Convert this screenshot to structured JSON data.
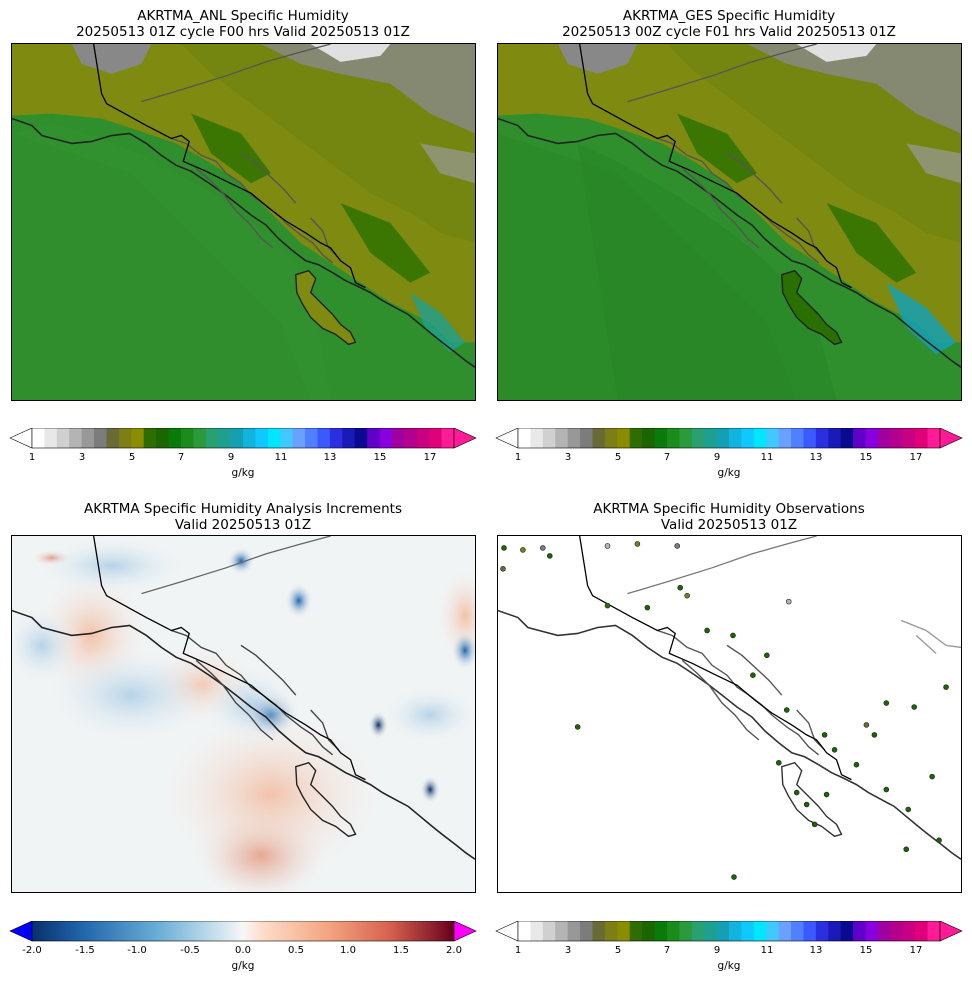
{
  "panels": {
    "anl": {
      "title_line1": "AKRTMA_ANL Specific Humidity",
      "title_line2": "20250513 01Z cycle F00 hrs Valid 20250513 01Z"
    },
    "ges": {
      "title_line1": "AKRTMA_GES Specific Humidity",
      "title_line2": "20250513 00Z cycle F01 hrs Valid 20250513 01Z"
    },
    "inc": {
      "title_line1": "AKRTMA Specific Humidity Analysis Increments",
      "title_line2": "Valid 20250513 01Z"
    },
    "obs": {
      "title_line1": "AKRTMA Specific Humidity Observations",
      "title_line2": "Valid 20250513 01Z"
    }
  },
  "colorbars": {
    "humidity": {
      "ticks": [
        "1",
        "3",
        "5",
        "7",
        "9",
        "11",
        "13",
        "15",
        "17"
      ],
      "unit": "g/kg",
      "colors": [
        "#ffffff",
        "#e8e8e8",
        "#d0d0d0",
        "#b4b4b4",
        "#989898",
        "#7c7c7c",
        "#6a6a36",
        "#7e7e16",
        "#8c8c00",
        "#2e6e00",
        "#1a6600",
        "#0a7a0a",
        "#1b8c1b",
        "#2a9a3a",
        "#28a070",
        "#1ea090",
        "#14a0b4",
        "#10b4dc",
        "#0fc8ff",
        "#00e6ff",
        "#40c8ff",
        "#6aa0ff",
        "#5080ff",
        "#3a5aff",
        "#2a30e0",
        "#1a1ab8",
        "#0a0a90",
        "#6000c8",
        "#8800e0",
        "#a000a0",
        "#b4008c",
        "#c80082",
        "#e0007a",
        "#ff1a96"
      ]
    },
    "increment": {
      "ticks": [
        "-2.0",
        "-1.5",
        "-1.0",
        "-0.5",
        "0.0",
        "0.5",
        "1.0",
        "1.5",
        "2.0"
      ],
      "unit": "g/kg"
    }
  },
  "colors": {
    "ocean_dark": "#237a1f",
    "ocean_mid": "#2f8f2c",
    "ocean_light": "#3a9a36",
    "land_olive": "#7e8a10",
    "land_dark": "#2a7000",
    "mountain_gray": "#888888",
    "snow": "#e0e0e0",
    "neg_blue": "#2166ac",
    "pos_red": "#d6604d",
    "neutral": "#f1f4f5"
  }
}
